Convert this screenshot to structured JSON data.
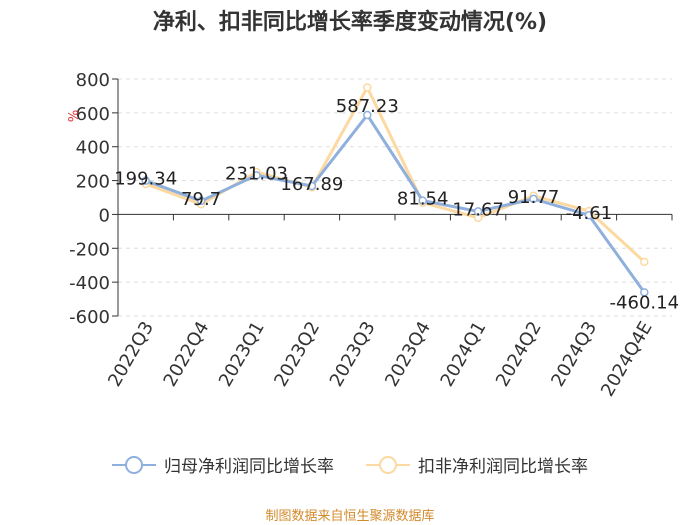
{
  "chart_data": {
    "type": "line",
    "title": "净利、扣非同比增长率季度变动情况(%)",
    "ylabel": "%",
    "categories": [
      "2022Q3",
      "2022Q4",
      "2023Q1",
      "2023Q2",
      "2023Q3",
      "2023Q4",
      "2024Q1",
      "2024Q2",
      "2024Q3",
      "2024Q4E"
    ],
    "ylim": [
      -600,
      800
    ],
    "yticks": [
      800,
      600,
      400,
      200,
      0,
      -200,
      -400,
      -600
    ],
    "grid": true,
    "legend_position": "bottom",
    "series": [
      {
        "name": "归母净利润同比增长率",
        "color": "#8fb0dc",
        "values": [
          199.34,
          79.7,
          231.03,
          167.89,
          587.23,
          81.54,
          17.67,
          91.77,
          -4.61,
          -460.14
        ],
        "labels": [
          "199.34",
          "79.7",
          "231.03",
          "167.89",
          "587.23",
          "81.54",
          "17.67",
          "91.77",
          "-4.61",
          "-460.14"
        ]
      },
      {
        "name": "扣非净利润同比增长率",
        "color": "#fcd9a1",
        "values": [
          180,
          60,
          250,
          160,
          750,
          70,
          -20,
          110,
          20,
          -280
        ]
      }
    ]
  },
  "source": "制图数据来自恒生聚源数据库"
}
